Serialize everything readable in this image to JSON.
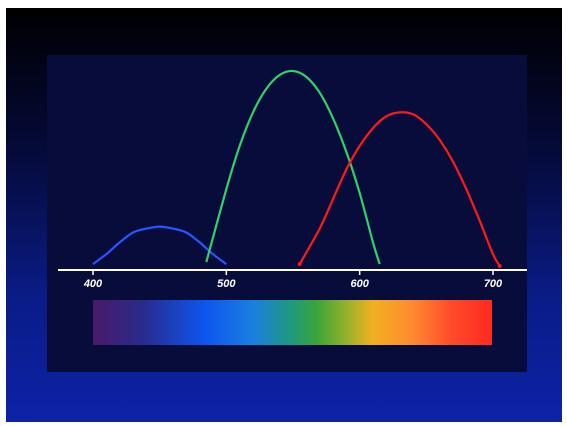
{
  "chart_data": {
    "type": "line",
    "title": "",
    "xlabel": "",
    "ylabel": "",
    "xlim": [
      400,
      700
    ],
    "x_ticks": [
      "400",
      "500",
      "600",
      "700"
    ],
    "grid": false,
    "legend": "none",
    "series": [
      {
        "color": "#2a55ff",
        "x": [
          400,
          410,
          420,
          430,
          440,
          450,
          460,
          470,
          480,
          490,
          500
        ],
        "y": [
          0.02,
          0.07,
          0.13,
          0.18,
          0.2,
          0.21,
          0.2,
          0.18,
          0.13,
          0.07,
          0.02
        ]
      },
      {
        "color": "#2fd16a",
        "x": [
          485,
          500,
          510,
          520,
          530,
          540,
          550,
          560,
          570,
          580,
          590,
          600,
          610,
          615
        ],
        "y": [
          0.03,
          0.4,
          0.62,
          0.79,
          0.91,
          0.98,
          1.0,
          0.97,
          0.89,
          0.76,
          0.59,
          0.38,
          0.13,
          0.02
        ]
      },
      {
        "color": "#ff1a1a",
        "x": [
          555,
          570,
          580,
          590,
          600,
          610,
          620,
          630,
          640,
          650,
          660,
          670,
          680,
          690,
          700,
          705
        ],
        "y": [
          0.02,
          0.2,
          0.35,
          0.5,
          0.62,
          0.71,
          0.77,
          0.79,
          0.78,
          0.73,
          0.65,
          0.54,
          0.4,
          0.24,
          0.07,
          0.01
        ]
      }
    ],
    "spectrum_stops": [
      {
        "offset": 0.0,
        "color": "#4a1a6a"
      },
      {
        "offset": 0.12,
        "color": "#2a2a8a"
      },
      {
        "offset": 0.28,
        "color": "#0d55ee"
      },
      {
        "offset": 0.4,
        "color": "#1a7fe0"
      },
      {
        "offset": 0.5,
        "color": "#1f9a7a"
      },
      {
        "offset": 0.56,
        "color": "#3aa43a"
      },
      {
        "offset": 0.63,
        "color": "#8fb02a"
      },
      {
        "offset": 0.7,
        "color": "#f0b020"
      },
      {
        "offset": 0.8,
        "color": "#ff8a30"
      },
      {
        "offset": 0.9,
        "color": "#ff4a2a"
      },
      {
        "offset": 1.0,
        "color": "#ff2a20"
      }
    ]
  }
}
